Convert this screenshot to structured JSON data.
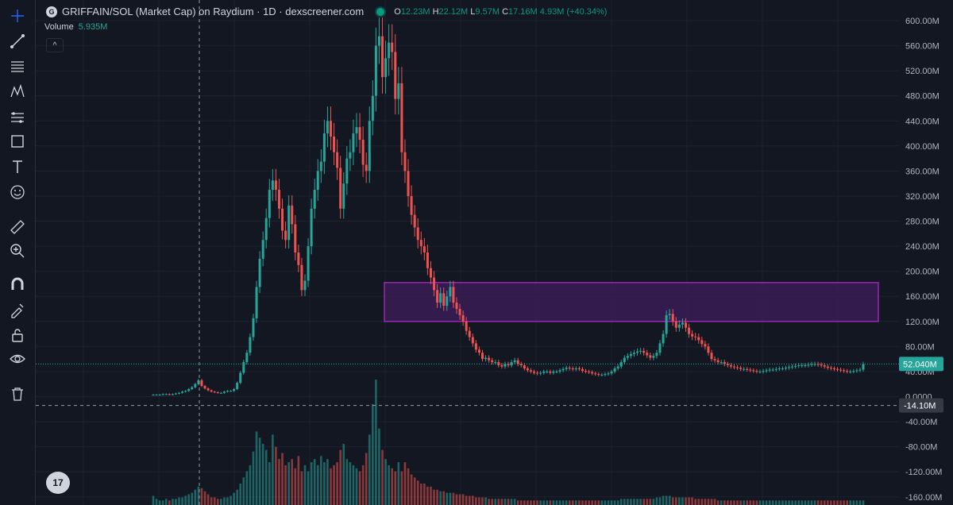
{
  "header": {
    "logo_letter": "G",
    "title": "GRIFFAIN/SOL (Market Cap) on Raydium · 1D · dexscreener.com",
    "ohlc": {
      "o_label": "O",
      "o": "12.23M",
      "h_label": "H",
      "h": "22.12M",
      "l_label": "L",
      "l": "9.57M",
      "c_label": "C",
      "c": "17.16M",
      "change": "4.93M (+40.34%)"
    }
  },
  "volume_legend": {
    "label": "Volume",
    "value": "5.935M"
  },
  "collapse_icon": "chevron-up-icon",
  "tv_logo": "17",
  "colors": {
    "background": "#131722",
    "up": "#26a69a",
    "down": "#ef5350",
    "zone_fill": "#3a1d55",
    "zone_stroke": "#9c27b0",
    "grid": "#1e2230",
    "price_line": "#26a69a"
  },
  "toolbar": [
    "crosshair-icon",
    "trend-line-icon",
    "horizontal-lines-icon",
    "pattern-icon",
    "fib-icon",
    "rectangle-icon",
    "text-icon",
    "emoji-icon",
    "ruler-icon",
    "zoom-icon",
    "magnet-icon",
    "lock-drawing-icon",
    "lock-icon",
    "eye-icon",
    "trash-icon"
  ],
  "chart_data": {
    "type": "candlestick",
    "title": "GRIFFAIN/SOL (Market Cap) on Raydium · 1D · dexscreener.com",
    "ylim": [
      -170,
      610
    ],
    "yticks": [
      600,
      560,
      520,
      480,
      440,
      400,
      360,
      320,
      280,
      240,
      200,
      160,
      120,
      80,
      40,
      0,
      -40,
      -80,
      -120,
      -160
    ],
    "ytick_labels": [
      "600.00M",
      "560.00M",
      "520.00M",
      "480.00M",
      "440.00M",
      "400.00M",
      "360.00M",
      "320.00M",
      "280.00M",
      "240.00M",
      "200.00M",
      "160.00M",
      "120.00M",
      "80.00M",
      "40.00M",
      "0.0000",
      "-40.00M",
      "-80.00M",
      "-120.00M",
      "-160.00M"
    ],
    "last_price": 52.04,
    "last_price_label": "52.040M",
    "crosshair_price": -14.1,
    "crosshair_label": "-14.10M",
    "zone": {
      "y_top": 182,
      "y_bottom": 120
    },
    "closes": [
      3,
      3,
      3,
      4,
      4,
      3,
      4,
      5,
      6,
      8,
      9,
      12,
      15,
      20,
      26,
      17,
      13,
      10,
      8,
      7,
      6,
      6,
      8,
      9,
      9,
      12,
      22,
      38,
      55,
      70,
      95,
      125,
      175,
      220,
      250,
      285,
      330,
      345,
      330,
      300,
      265,
      250,
      305,
      275,
      230,
      210,
      170,
      185,
      240,
      300,
      330,
      360,
      375,
      420,
      440,
      415,
      390,
      365,
      300,
      340,
      380,
      390,
      420,
      430,
      410,
      370,
      360,
      440,
      480,
      560,
      575,
      510,
      540,
      565,
      550,
      475,
      500,
      390,
      360,
      320,
      290,
      270,
      250,
      240,
      230,
      205,
      190,
      170,
      150,
      165,
      145,
      160,
      175,
      150,
      140,
      130,
      120,
      105,
      95,
      85,
      75,
      70,
      60,
      62,
      58,
      55,
      55,
      50,
      48,
      52,
      50,
      55,
      58,
      52,
      50,
      45,
      42,
      40,
      38,
      37,
      38,
      40,
      40,
      38,
      40,
      40,
      42,
      44,
      46,
      45,
      44,
      45,
      44,
      41,
      40,
      39,
      37,
      36,
      35,
      35,
      36,
      37,
      40,
      45,
      48,
      55,
      62,
      65,
      68,
      70,
      72,
      73,
      70,
      66,
      62,
      65,
      70,
      85,
      100,
      130,
      132,
      120,
      110,
      115,
      118,
      110,
      100,
      96,
      95,
      90,
      84,
      80,
      70,
      60,
      58,
      55,
      55,
      52,
      50,
      48,
      47,
      46,
      44,
      44,
      43,
      42,
      41,
      40,
      40,
      41,
      42,
      43,
      43,
      44,
      45,
      45,
      46,
      47,
      48,
      49,
      50,
      50,
      50,
      51,
      52,
      52,
      51,
      50,
      48,
      46,
      45,
      44,
      43,
      42,
      41,
      40,
      40,
      41,
      42,
      43,
      52
    ],
    "volumes": [
      6,
      4,
      3,
      3,
      4,
      3,
      4,
      4,
      5,
      5,
      6,
      7,
      8,
      10,
      12,
      11,
      9,
      7,
      5,
      5,
      4,
      4,
      5,
      5,
      6,
      8,
      10,
      14,
      18,
      22,
      26,
      35,
      48,
      44,
      40,
      36,
      28,
      46,
      38,
      30,
      34,
      26,
      28,
      30,
      24,
      32,
      22,
      26,
      22,
      28,
      30,
      26,
      32,
      28,
      30,
      24,
      26,
      28,
      36,
      40,
      30,
      28,
      26,
      24,
      22,
      26,
      34,
      46,
      66,
      82,
      50,
      36,
      30,
      26,
      24,
      22,
      28,
      22,
      28,
      24,
      20,
      18,
      16,
      14,
      14,
      12,
      12,
      10,
      10,
      9,
      9,
      8,
      8,
      8,
      7,
      7,
      7,
      6,
      6,
      6,
      5,
      5,
      5,
      5,
      4,
      4,
      4,
      4,
      4,
      4,
      4,
      4,
      4,
      3,
      3,
      3,
      3,
      3,
      3,
      3,
      3,
      3,
      3,
      3,
      3,
      3,
      3,
      3,
      3,
      3,
      3,
      3,
      3,
      3,
      3,
      3,
      3,
      3,
      3,
      3,
      3,
      3,
      3,
      3,
      3,
      4,
      4,
      4,
      4,
      4,
      4,
      4,
      4,
      4,
      4,
      4,
      5,
      5,
      6,
      6,
      6,
      5,
      5,
      5,
      5,
      5,
      5,
      5,
      4,
      4,
      4,
      4,
      4,
      4,
      4,
      3,
      3,
      3,
      3,
      3,
      3,
      3,
      3,
      3,
      3,
      3,
      3,
      3,
      3,
      3,
      3,
      3,
      3,
      3,
      3,
      3,
      3,
      3,
      3,
      3,
      3,
      3,
      3,
      3,
      3,
      3,
      3,
      3,
      3,
      3,
      3,
      3,
      3,
      3,
      3,
      3,
      3,
      3,
      3,
      3,
      3,
      3,
      3,
      3,
      3,
      3,
      4
    ]
  }
}
